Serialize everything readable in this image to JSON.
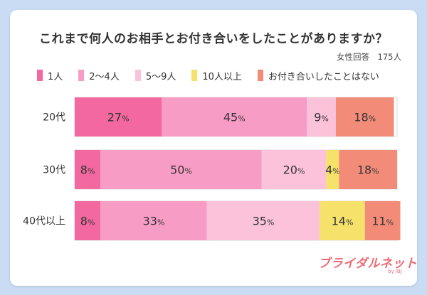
{
  "title": "これまで何人のお相手とお付き合いをしたことがありますか？",
  "note": "女性回答　175人",
  "brand": {
    "name": "ブライダルネット",
    "sub": "by IBJ"
  },
  "chart_data": {
    "type": "bar",
    "orientation": "horizontal",
    "stacked": true,
    "title": "これまで何人のお相手とお付き合いをしたことがありますか？",
    "xlabel": "",
    "ylabel": "",
    "xlim": [
      0,
      100
    ],
    "grid": false,
    "legend_position": "top",
    "categories": [
      "20代",
      "30代",
      "40代以上"
    ],
    "series": [
      {
        "name": "1人",
        "color": "#f2689f",
        "values": [
          27,
          8,
          8
        ]
      },
      {
        "name": "2～4人",
        "color": "#f79cc4",
        "values": [
          45,
          50,
          33
        ]
      },
      {
        "name": "5～9人",
        "color": "#fbc2da",
        "values": [
          9,
          20,
          35
        ]
      },
      {
        "name": "10人以上",
        "color": "#f6e26a",
        "values": [
          0,
          4,
          14
        ]
      },
      {
        "name": "お付き合いしたことはない",
        "color": "#f28c78",
        "values": [
          18,
          18,
          11
        ]
      }
    ]
  }
}
